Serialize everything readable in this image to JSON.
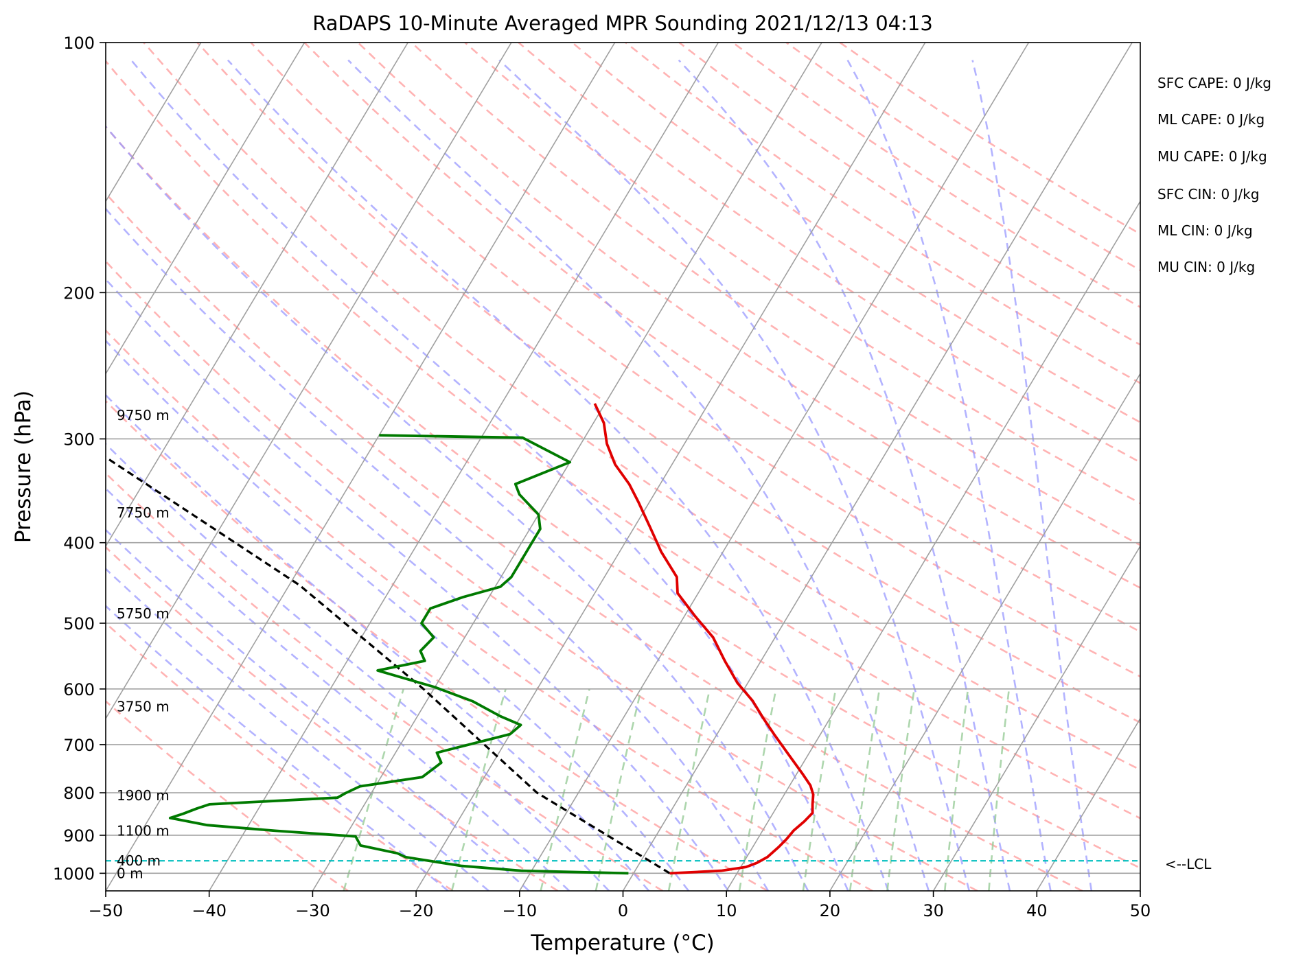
{
  "chart_data": {
    "type": "line",
    "title": "RaDAPS 10-Minute Averaged MPR Sounding 2021/12/13 04:13",
    "xlabel": "Temperature (°C)",
    "ylabel": "Pressure (hPa)",
    "xlim": [
      -50,
      50
    ],
    "ylim": [
      1050,
      100
    ],
    "y_scale": "log",
    "grid": true,
    "x_ticks": [
      -50,
      -40,
      -30,
      -20,
      -10,
      0,
      10,
      20,
      30,
      40,
      50
    ],
    "x_tick_labels": [
      "−50",
      "−40",
      "−30",
      "−20",
      "−10",
      "0",
      "10",
      "20",
      "30",
      "40",
      "50"
    ],
    "y_ticks": [
      1000,
      900,
      800,
      700,
      600,
      500,
      400,
      300,
      200,
      100
    ],
    "y_tick_labels": [
      "1000",
      "900",
      "800",
      "700",
      "600",
      "500",
      "400",
      "300",
      "200",
      "100"
    ],
    "skew_slope": 0.6,
    "series": [
      {
        "role": "temperature",
        "color": "#e00000",
        "points": [
          [
            1000,
            3.5
          ],
          [
            993,
            8.3
          ],
          [
            983,
            10.5
          ],
          [
            972,
            11.3
          ],
          [
            956,
            12.0
          ],
          [
            930,
            12.5
          ],
          [
            910,
            12.8
          ],
          [
            888,
            13.0
          ],
          [
            866,
            13.5
          ],
          [
            846,
            13.8
          ],
          [
            826,
            13.3
          ],
          [
            804,
            12.8
          ],
          [
            784,
            12.0
          ],
          [
            758,
            10.5
          ],
          [
            718,
            8.0
          ],
          [
            680,
            5.5
          ],
          [
            650,
            3.5
          ],
          [
            620,
            1.5
          ],
          [
            590,
            -1.0
          ],
          [
            555,
            -3.5
          ],
          [
            520,
            -6.0
          ],
          [
            490,
            -9.0
          ],
          [
            460,
            -12.0
          ],
          [
            440,
            -13.0
          ],
          [
            410,
            -16.0
          ],
          [
            383,
            -18.5
          ],
          [
            358,
            -21.0
          ],
          [
            340,
            -23.0
          ],
          [
            322,
            -25.5
          ],
          [
            304,
            -27.5
          ],
          [
            287,
            -29.0
          ],
          [
            272,
            -31.0
          ]
        ]
      },
      {
        "role": "dewpoint",
        "color": "#007a00",
        "points": [
          [
            1000,
            -0.5
          ],
          [
            993,
            -11.0
          ],
          [
            980,
            -17.0
          ],
          [
            968,
            -20.0
          ],
          [
            956,
            -23.0
          ],
          [
            946,
            -24.0
          ],
          [
            926,
            -28.0
          ],
          [
            903,
            -29.0
          ],
          [
            889,
            -37.0
          ],
          [
            875,
            -44.0
          ],
          [
            858,
            -48.0
          ],
          [
            848,
            -47.0
          ],
          [
            836,
            -46.0
          ],
          [
            826,
            -45.0
          ],
          [
            811,
            -33.0
          ],
          [
            801,
            -32.5
          ],
          [
            786,
            -31.5
          ],
          [
            766,
            -26.0
          ],
          [
            736,
            -25.0
          ],
          [
            716,
            -26.0
          ],
          [
            680,
            -20.0
          ],
          [
            663,
            -19.5
          ],
          [
            647,
            -22.0
          ],
          [
            621,
            -25.5
          ],
          [
            597,
            -30.0
          ],
          [
            570,
            -36.5
          ],
          [
            555,
            -32.5
          ],
          [
            540,
            -33.5
          ],
          [
            520,
            -33.0
          ],
          [
            500,
            -35.0
          ],
          [
            480,
            -35.0
          ],
          [
            465,
            -32.5
          ],
          [
            452,
            -29.5
          ],
          [
            440,
            -29.0
          ],
          [
            420,
            -29.0
          ],
          [
            400,
            -29.0
          ],
          [
            385,
            -29.0
          ],
          [
            370,
            -30.0
          ],
          [
            350,
            -33.0
          ],
          [
            340,
            -34.0
          ],
          [
            320,
            -30.0
          ],
          [
            299,
            -36.0
          ],
          [
            297,
            -50.0
          ]
        ]
      },
      {
        "role": "parcel",
        "color": "#000000",
        "style": "dashed",
        "points": [
          [
            1000,
            3.5
          ],
          [
            966,
            0.8
          ],
          [
            800,
            -14.0
          ],
          [
            600,
            -31.0
          ],
          [
            450,
            -49.0
          ],
          [
            280,
            -84.0
          ]
        ]
      }
    ],
    "lcl": {
      "pressure": 966,
      "label": "<--LCL",
      "color": "#00bfbf"
    },
    "height_labels": [
      {
        "pressure": 1000,
        "text": "0 m"
      },
      {
        "pressure": 966,
        "text": "400 m"
      },
      {
        "pressure": 889,
        "text": "1100 m"
      },
      {
        "pressure": 806,
        "text": "1900 m"
      },
      {
        "pressure": 630,
        "text": "3750 m"
      },
      {
        "pressure": 487,
        "text": "5750 m"
      },
      {
        "pressure": 368,
        "text": "7750 m"
      },
      {
        "pressure": 281,
        "text": "9750 m"
      }
    ],
    "indices": [
      "SFC CAPE: 0 J/kg",
      "ML CAPE: 0 J/kg",
      "MU CAPE: 0 J/kg",
      "SFC CIN: 0 J/kg",
      "ML CIN: 0 J/kg",
      "MU CIN: 0 J/kg"
    ],
    "colors": {
      "isotherm": "#a0a0a0",
      "dry_adiabat": "#ff9999",
      "moist_adiabat": "#9999ff",
      "mixing_ratio": "#99cc99",
      "gridline": "#a0a0a0"
    }
  }
}
